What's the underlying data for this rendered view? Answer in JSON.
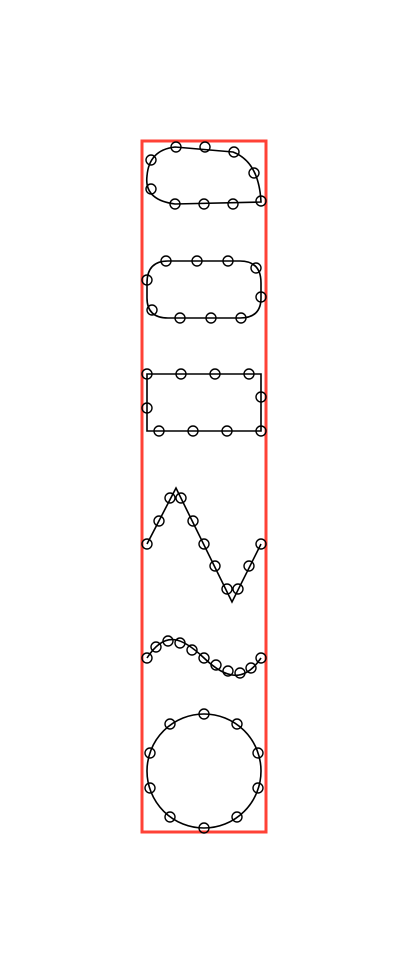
{
  "diagram": {
    "colors": {
      "frame": "#ff4136",
      "stroke": "#000000",
      "background": "#ffffff"
    },
    "shapes": [
      {
        "id": "bulb-shape",
        "kind": "closed-curve"
      },
      {
        "id": "rounded-rect-shape",
        "kind": "closed-curve"
      },
      {
        "id": "rectangle-shape",
        "kind": "polygon"
      },
      {
        "id": "zigzag-shape",
        "kind": "open-polyline"
      },
      {
        "id": "sine-wave-shape",
        "kind": "open-curve"
      },
      {
        "id": "circle-shape",
        "kind": "closed-curve"
      }
    ]
  }
}
